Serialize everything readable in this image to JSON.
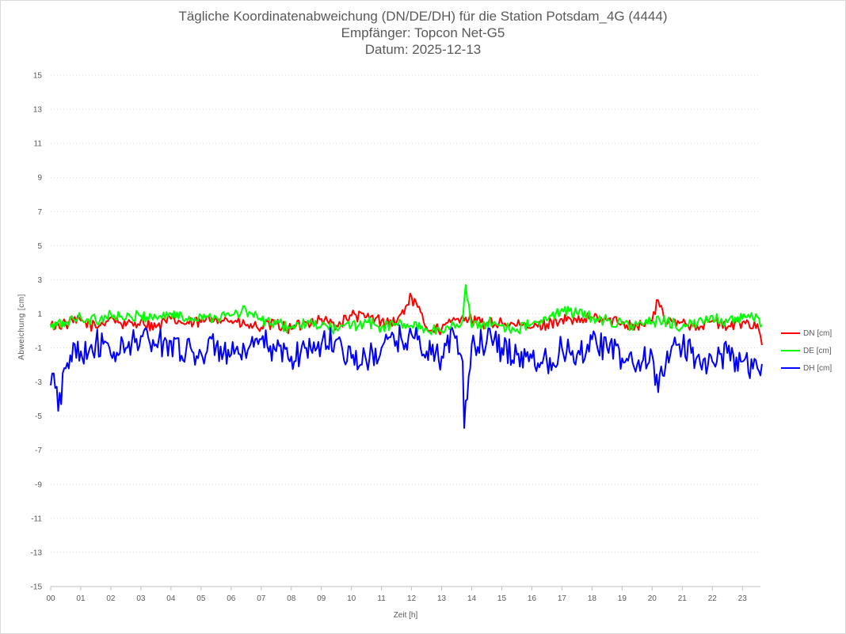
{
  "title": {
    "line1": "Tägliche Koordinatenabweichung (DN/DE/DH) für die Station Potsdam_4G (4444)",
    "line2": "Empfänger: Topcon Net-G5",
    "line3": "Datum: 2025-12-13"
  },
  "chart_data": {
    "type": "line",
    "title": "Tägliche Koordinatenabweichung (DN/DE/DH) für die Station Potsdam_4G (4444)",
    "subtitle": [
      "Empfänger: Topcon Net-G5",
      "Datum: 2025-12-13"
    ],
    "xlabel": "Zeit [h]",
    "ylabel": "Abweichung [cm]",
    "xlim": [
      0,
      23.67
    ],
    "ylim": [
      -15,
      15
    ],
    "x_ticks": [
      "00",
      "01",
      "02",
      "03",
      "04",
      "05",
      "06",
      "07",
      "08",
      "09",
      "10",
      "11",
      "12",
      "13",
      "14",
      "15",
      "16",
      "17",
      "18",
      "19",
      "20",
      "21",
      "22",
      "23"
    ],
    "y_ticks": [
      "15",
      "13",
      "11",
      "9",
      "7",
      "5",
      "3",
      "1",
      "-1",
      "-3",
      "-5",
      "-7",
      "-9",
      "-11",
      "-13",
      "-15"
    ],
    "grid": "horizontal dotted",
    "legend_position": "right",
    "series": [
      {
        "name": "DN [cm]",
        "color": "#ff0000",
        "x": [
          0,
          0.5,
          1,
          1.5,
          2,
          2.5,
          3,
          3.5,
          4,
          4.5,
          5,
          5.5,
          6,
          6.5,
          7,
          7.5,
          8,
          8.5,
          9,
          9.5,
          10,
          10.5,
          11,
          11.5,
          12,
          12.5,
          13,
          13.5,
          13.7,
          14,
          14.5,
          15,
          15.5,
          16,
          16.5,
          17,
          17.5,
          18,
          18.5,
          19,
          19.5,
          20,
          20.2,
          20.5,
          21,
          21.5,
          22,
          22.5,
          23,
          23.5,
          23.67
        ],
        "y": [
          0.3,
          0.4,
          0.6,
          0.2,
          0.8,
          0.3,
          0.6,
          0.2,
          0.7,
          0.4,
          0.5,
          0.8,
          0.6,
          0.3,
          0.2,
          0.4,
          0.1,
          0.5,
          0.7,
          0.3,
          0.9,
          0.8,
          0.6,
          0.5,
          2.0,
          0.2,
          0.1,
          0.7,
          0.9,
          0.6,
          0.4,
          0.5,
          0.3,
          0.2,
          0.4,
          0.7,
          0.5,
          0.8,
          0.6,
          0.5,
          0.3,
          0.6,
          1.8,
          0.4,
          0.5,
          0.3,
          0.6,
          0.2,
          0.5,
          0.4,
          -1.0
        ]
      },
      {
        "name": "DE [cm]",
        "color": "#00ff00",
        "x": [
          0,
          0.5,
          1,
          1.5,
          2,
          2.5,
          3,
          3.5,
          4,
          4.5,
          5,
          5.5,
          6,
          6.5,
          7,
          7.5,
          8,
          8.5,
          9,
          9.5,
          10,
          10.5,
          11,
          11.5,
          12,
          12.5,
          13,
          13.5,
          13.7,
          13.8,
          14,
          14.5,
          15,
          15.5,
          16,
          16.5,
          17,
          17.5,
          18,
          18.5,
          19,
          19.5,
          20,
          20.5,
          21,
          21.5,
          22,
          22.5,
          23,
          23.5,
          23.67
        ],
        "y": [
          0.2,
          0.5,
          0.8,
          0.6,
          1.0,
          0.7,
          0.9,
          0.8,
          1.0,
          0.7,
          0.9,
          0.8,
          0.9,
          1.2,
          0.6,
          0.4,
          0.2,
          0.4,
          0.3,
          0.1,
          0.3,
          0.5,
          0.2,
          0.4,
          0.3,
          0.1,
          0.0,
          0.4,
          0.6,
          2.7,
          0.2,
          0.5,
          0.3,
          0.1,
          0.4,
          0.6,
          1.3,
          1.0,
          0.8,
          0.6,
          0.4,
          0.3,
          0.5,
          0.6,
          0.2,
          0.4,
          0.9,
          0.5,
          0.7,
          0.8,
          0.3
        ]
      },
      {
        "name": "DH [cm]",
        "color": "#0000ff",
        "x": [
          0,
          0.1,
          0.25,
          0.5,
          0.8,
          1,
          1.5,
          2,
          2.5,
          3,
          3.5,
          4,
          4.5,
          5,
          5.5,
          6,
          6.5,
          7,
          7.5,
          8,
          8.5,
          9,
          9.5,
          10,
          10.5,
          11,
          11.5,
          12,
          12.5,
          13,
          13.5,
          13.7,
          13.75,
          14,
          14.5,
          15,
          15.5,
          16,
          16.5,
          17,
          17.5,
          18,
          18.5,
          19,
          19.5,
          20,
          20.2,
          20.5,
          21,
          21.5,
          22,
          22.5,
          23,
          23.5,
          23.67
        ],
        "y": [
          -3.2,
          -2.5,
          -4.7,
          -2.2,
          -0.8,
          -1.2,
          -0.7,
          -1.4,
          -1.0,
          -0.3,
          -0.8,
          -0.6,
          -1.2,
          -1.3,
          -0.9,
          -1.4,
          -1.6,
          -0.5,
          -1.2,
          -1.5,
          -1.0,
          -0.8,
          -0.5,
          -1.6,
          -1.8,
          -1.0,
          -0.6,
          -0.2,
          -1.2,
          -1.5,
          -0.3,
          -1.8,
          -5.7,
          -0.8,
          -0.6,
          -1.0,
          -1.4,
          -1.6,
          -1.8,
          -1.0,
          -1.4,
          -0.5,
          -1.0,
          -1.6,
          -2.0,
          -1.4,
          -3.6,
          -1.2,
          -1.0,
          -1.5,
          -1.8,
          -1.3,
          -1.8,
          -2.2,
          -1.9
        ]
      }
    ]
  },
  "legend": {
    "items": [
      {
        "label": "DN [cm]",
        "color": "#ff0000"
      },
      {
        "label": "DE [cm]",
        "color": "#00ff00"
      },
      {
        "label": "DH [cm]",
        "color": "#0000ff"
      }
    ]
  }
}
